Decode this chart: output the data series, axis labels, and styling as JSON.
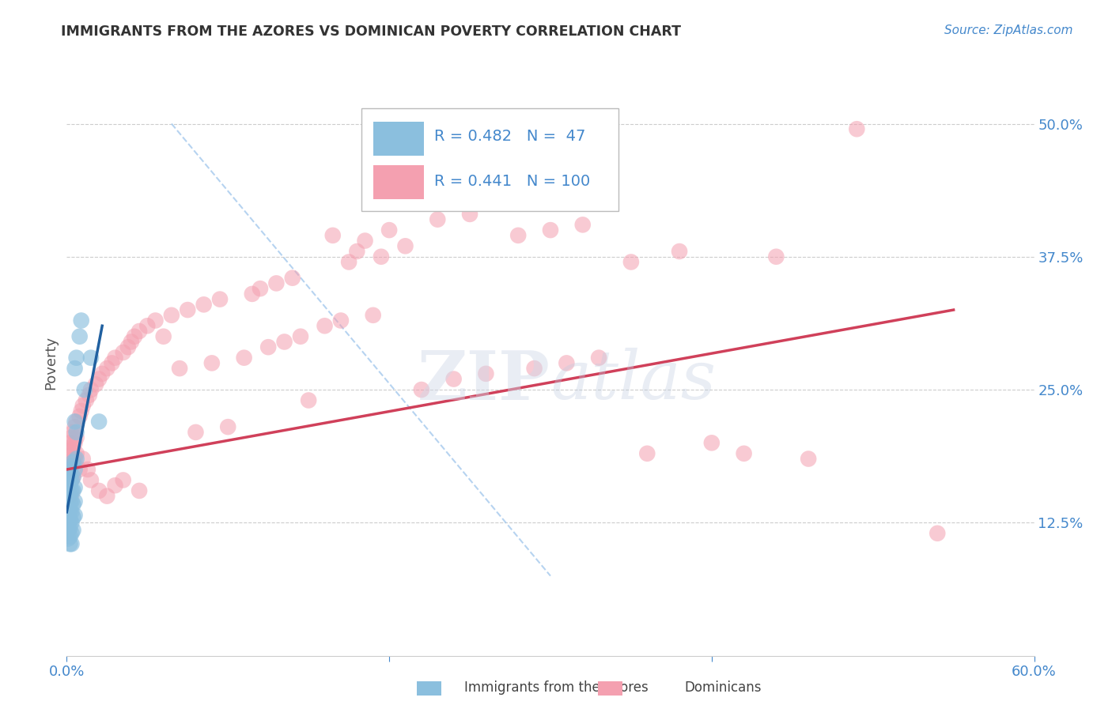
{
  "title": "IMMIGRANTS FROM THE AZORES VS DOMINICAN POVERTY CORRELATION CHART",
  "source": "Source: ZipAtlas.com",
  "ylabel_label": "Poverty",
  "xlim": [
    0.0,
    0.6
  ],
  "ylim": [
    0.0,
    0.55
  ],
  "watermark": "ZIPatlas",
  "legend_r1": "R = 0.482",
  "legend_n1": "N =  47",
  "legend_r2": "R = 0.441",
  "legend_n2": "N = 100",
  "blue_color": "#8bbfde",
  "pink_color": "#f4a0b0",
  "blue_line_color": "#2060a0",
  "pink_line_color": "#d0405a",
  "diag_line_color": "#aaccee",
  "title_color": "#333333",
  "axis_label_color": "#555555",
  "tick_color": "#4488cc",
  "source_color": "#4488cc",
  "blue_points": [
    [
      0.001,
      0.17
    ],
    [
      0.001,
      0.165
    ],
    [
      0.001,
      0.155
    ],
    [
      0.001,
      0.148
    ],
    [
      0.001,
      0.14
    ],
    [
      0.001,
      0.132
    ],
    [
      0.001,
      0.125
    ],
    [
      0.001,
      0.118
    ],
    [
      0.001,
      0.11
    ],
    [
      0.002,
      0.175
    ],
    [
      0.002,
      0.168
    ],
    [
      0.002,
      0.16
    ],
    [
      0.002,
      0.152
    ],
    [
      0.002,
      0.144
    ],
    [
      0.002,
      0.136
    ],
    [
      0.002,
      0.128
    ],
    [
      0.002,
      0.12
    ],
    [
      0.002,
      0.112
    ],
    [
      0.002,
      0.105
    ],
    [
      0.003,
      0.178
    ],
    [
      0.003,
      0.165
    ],
    [
      0.003,
      0.155
    ],
    [
      0.003,
      0.145
    ],
    [
      0.003,
      0.135
    ],
    [
      0.003,
      0.125
    ],
    [
      0.003,
      0.115
    ],
    [
      0.003,
      0.105
    ],
    [
      0.004,
      0.182
    ],
    [
      0.004,
      0.168
    ],
    [
      0.004,
      0.155
    ],
    [
      0.004,
      0.142
    ],
    [
      0.004,
      0.13
    ],
    [
      0.004,
      0.118
    ],
    [
      0.005,
      0.27
    ],
    [
      0.005,
      0.22
    ],
    [
      0.005,
      0.175
    ],
    [
      0.005,
      0.158
    ],
    [
      0.005,
      0.145
    ],
    [
      0.005,
      0.132
    ],
    [
      0.006,
      0.28
    ],
    [
      0.006,
      0.21
    ],
    [
      0.006,
      0.185
    ],
    [
      0.008,
      0.3
    ],
    [
      0.009,
      0.315
    ],
    [
      0.011,
      0.25
    ],
    [
      0.015,
      0.28
    ],
    [
      0.02,
      0.22
    ]
  ],
  "pink_points": [
    [
      0.001,
      0.195
    ],
    [
      0.001,
      0.182
    ],
    [
      0.001,
      0.17
    ],
    [
      0.001,
      0.158
    ],
    [
      0.002,
      0.2
    ],
    [
      0.002,
      0.188
    ],
    [
      0.002,
      0.175
    ],
    [
      0.002,
      0.163
    ],
    [
      0.002,
      0.15
    ],
    [
      0.003,
      0.205
    ],
    [
      0.003,
      0.192
    ],
    [
      0.003,
      0.178
    ],
    [
      0.003,
      0.165
    ],
    [
      0.003,
      0.152
    ],
    [
      0.004,
      0.21
    ],
    [
      0.004,
      0.195
    ],
    [
      0.004,
      0.182
    ],
    [
      0.004,
      0.168
    ],
    [
      0.005,
      0.215
    ],
    [
      0.005,
      0.2
    ],
    [
      0.005,
      0.185
    ],
    [
      0.006,
      0.22
    ],
    [
      0.006,
      0.205
    ],
    [
      0.006,
      0.19
    ],
    [
      0.008,
      0.175
    ],
    [
      0.008,
      0.225
    ],
    [
      0.009,
      0.23
    ],
    [
      0.01,
      0.185
    ],
    [
      0.01,
      0.235
    ],
    [
      0.012,
      0.24
    ],
    [
      0.013,
      0.175
    ],
    [
      0.014,
      0.245
    ],
    [
      0.015,
      0.165
    ],
    [
      0.015,
      0.25
    ],
    [
      0.018,
      0.255
    ],
    [
      0.02,
      0.155
    ],
    [
      0.02,
      0.26
    ],
    [
      0.022,
      0.265
    ],
    [
      0.025,
      0.15
    ],
    [
      0.025,
      0.27
    ],
    [
      0.028,
      0.275
    ],
    [
      0.03,
      0.16
    ],
    [
      0.03,
      0.28
    ],
    [
      0.035,
      0.165
    ],
    [
      0.035,
      0.285
    ],
    [
      0.038,
      0.29
    ],
    [
      0.04,
      0.295
    ],
    [
      0.042,
      0.3
    ],
    [
      0.045,
      0.155
    ],
    [
      0.045,
      0.305
    ],
    [
      0.05,
      0.31
    ],
    [
      0.055,
      0.315
    ],
    [
      0.06,
      0.3
    ],
    [
      0.065,
      0.32
    ],
    [
      0.07,
      0.27
    ],
    [
      0.075,
      0.325
    ],
    [
      0.08,
      0.21
    ],
    [
      0.085,
      0.33
    ],
    [
      0.09,
      0.275
    ],
    [
      0.095,
      0.335
    ],
    [
      0.1,
      0.215
    ],
    [
      0.11,
      0.28
    ],
    [
      0.115,
      0.34
    ],
    [
      0.12,
      0.345
    ],
    [
      0.125,
      0.29
    ],
    [
      0.13,
      0.35
    ],
    [
      0.135,
      0.295
    ],
    [
      0.14,
      0.355
    ],
    [
      0.145,
      0.3
    ],
    [
      0.15,
      0.24
    ],
    [
      0.16,
      0.31
    ],
    [
      0.165,
      0.395
    ],
    [
      0.17,
      0.315
    ],
    [
      0.175,
      0.37
    ],
    [
      0.18,
      0.38
    ],
    [
      0.185,
      0.39
    ],
    [
      0.19,
      0.32
    ],
    [
      0.195,
      0.375
    ],
    [
      0.2,
      0.4
    ],
    [
      0.21,
      0.385
    ],
    [
      0.22,
      0.25
    ],
    [
      0.23,
      0.41
    ],
    [
      0.24,
      0.26
    ],
    [
      0.25,
      0.415
    ],
    [
      0.26,
      0.265
    ],
    [
      0.28,
      0.395
    ],
    [
      0.29,
      0.27
    ],
    [
      0.3,
      0.4
    ],
    [
      0.31,
      0.275
    ],
    [
      0.32,
      0.405
    ],
    [
      0.33,
      0.28
    ],
    [
      0.35,
      0.37
    ],
    [
      0.36,
      0.19
    ],
    [
      0.38,
      0.38
    ],
    [
      0.4,
      0.2
    ],
    [
      0.42,
      0.19
    ],
    [
      0.44,
      0.375
    ],
    [
      0.46,
      0.185
    ],
    [
      0.49,
      0.495
    ],
    [
      0.54,
      0.115
    ]
  ],
  "blue_line_x": [
    0.0,
    0.022
  ],
  "blue_line_y": [
    0.135,
    0.31
  ],
  "pink_line_x": [
    0.0,
    0.55
  ],
  "pink_line_y": [
    0.175,
    0.325
  ],
  "diag_line_pts": [
    [
      0.065,
      0.5
    ],
    [
      0.3,
      0.075
    ]
  ]
}
